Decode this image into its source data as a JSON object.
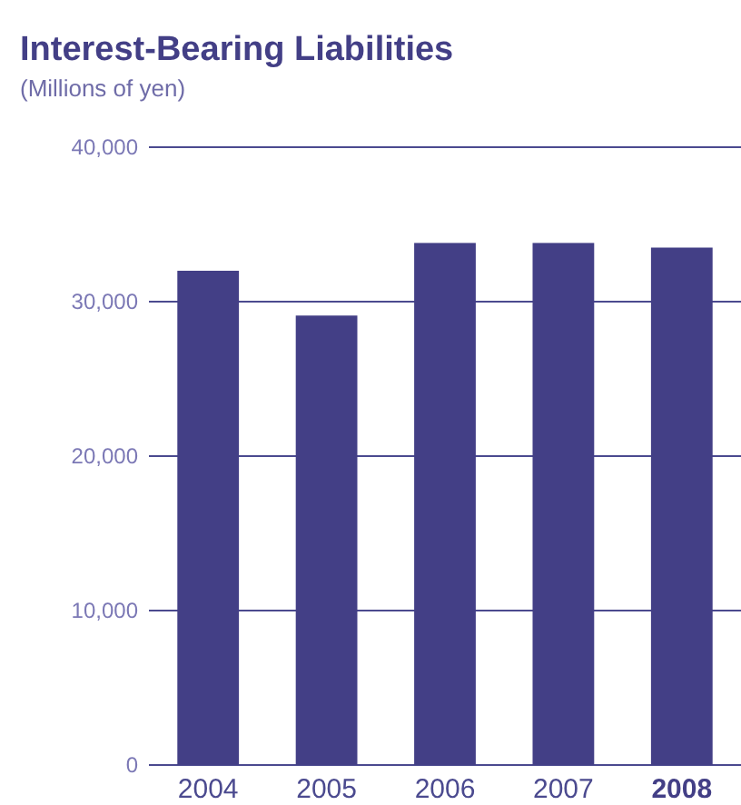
{
  "chart_data": {
    "type": "bar",
    "title": "Interest-Bearing Liabilities",
    "subtitle": "(Millions of yen)",
    "categories": [
      "2004",
      "2005",
      "2006",
      "2007",
      "2008"
    ],
    "values": [
      32000,
      29100,
      33800,
      33800,
      33500
    ],
    "color": "#433f86",
    "ylim": [
      0,
      40000
    ],
    "yticks": [
      {
        "value": 0,
        "label": "0"
      },
      {
        "value": 10000,
        "label": "10,000"
      },
      {
        "value": 20000,
        "label": "20,000"
      },
      {
        "value": 30000,
        "label": "30,000"
      },
      {
        "value": 40000,
        "label": "40,000"
      }
    ],
    "grid": "y"
  }
}
